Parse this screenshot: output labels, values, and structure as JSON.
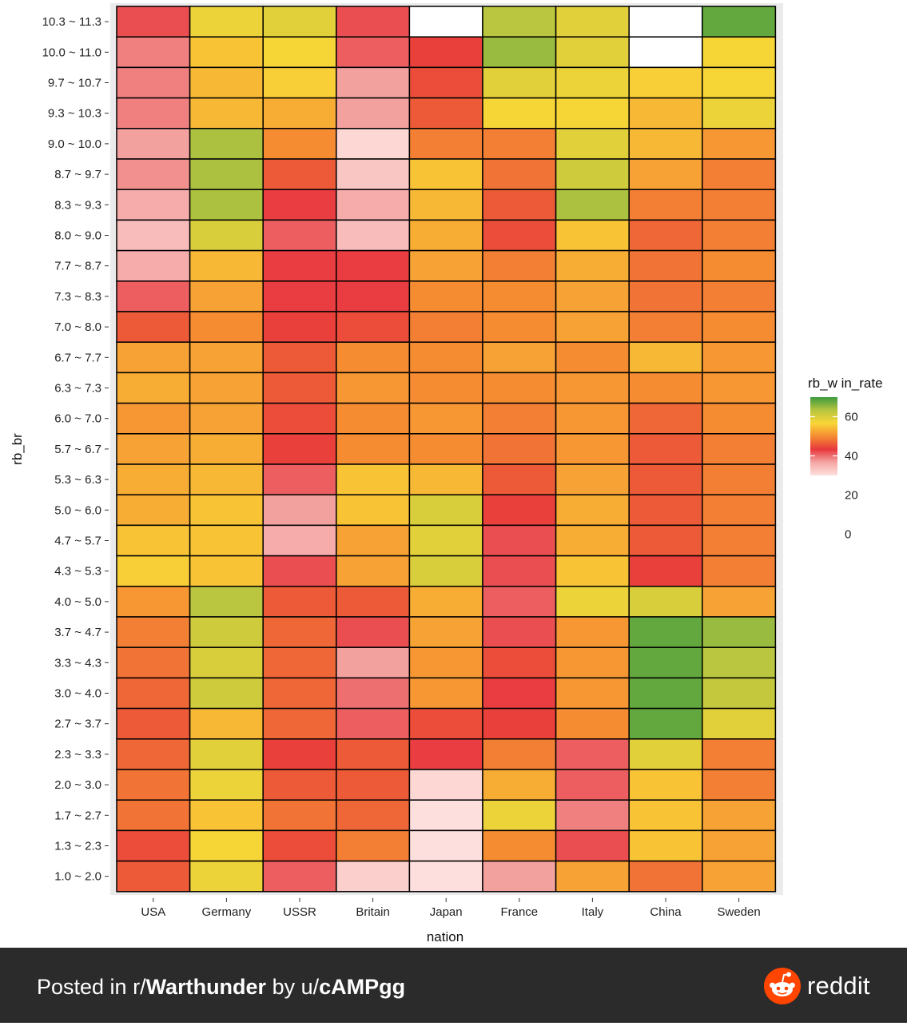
{
  "chart_data": {
    "type": "heatmap",
    "xlabel": "nation",
    "ylabel": "rb_br",
    "x_categories": [
      "USA",
      "Germany",
      "USSR",
      "Britain",
      "Japan",
      "France",
      "Italy",
      "China",
      "Sweden"
    ],
    "y_categories": [
      "10.3 ~ 11.3",
      "10.0 ~ 11.0",
      "9.7 ~ 10.7",
      "9.3 ~ 10.3",
      "9.0 ~ 10.0",
      "8.7 ~ 9.7",
      "8.3 ~ 9.3",
      "8.0 ~ 9.0",
      "7.7 ~ 8.7",
      "7.3 ~ 8.3",
      "7.0 ~ 8.0",
      "6.7 ~ 7.7",
      "6.3 ~ 7.3",
      "6.0 ~ 7.0",
      "5.7 ~ 6.7",
      "5.3 ~ 6.3",
      "5.0 ~ 6.0",
      "4.7 ~ 5.7",
      "4.3 ~ 5.3",
      "4.0 ~ 5.0",
      "3.7 ~ 4.7",
      "3.3 ~ 4.3",
      "3.0 ~ 4.0",
      "2.7 ~ 3.7",
      "2.3 ~ 3.3",
      "2.0 ~ 3.0",
      "1.7 ~ 2.7",
      "1.3 ~ 2.3",
      "1.0 ~ 2.0"
    ],
    "values": [
      [
        42,
        58,
        59,
        42,
        null,
        63,
        59,
        null,
        68
      ],
      [
        39,
        55,
        57,
        41,
        44,
        65,
        59,
        null,
        57
      ],
      [
        39,
        54,
        56,
        37,
        45,
        59,
        58,
        56,
        57
      ],
      [
        39,
        54,
        53,
        37,
        46,
        57,
        57,
        54,
        58
      ],
      [
        37,
        64,
        50,
        31,
        49,
        49,
        59,
        54,
        51
      ],
      [
        38,
        64,
        46,
        33,
        55,
        48,
        61,
        52,
        49
      ],
      [
        36,
        64,
        43,
        36,
        54,
        46,
        64,
        49,
        49
      ],
      [
        34,
        60,
        41,
        34,
        53,
        45,
        55,
        47,
        49
      ],
      [
        36,
        54,
        43,
        43,
        52,
        49,
        53,
        48,
        50
      ],
      [
        41,
        52,
        43,
        43,
        50,
        50,
        52,
        48,
        49
      ],
      [
        46,
        50,
        44,
        45,
        49,
        50,
        52,
        49,
        50
      ],
      [
        52,
        52,
        46,
        50,
        50,
        52,
        50,
        54,
        51
      ],
      [
        53,
        52,
        46,
        51,
        50,
        50,
        51,
        50,
        51
      ],
      [
        51,
        52,
        45,
        50,
        51,
        49,
        51,
        47,
        50
      ],
      [
        52,
        53,
        44,
        50,
        50,
        48,
        51,
        46,
        49
      ],
      [
        53,
        54,
        41,
        55,
        54,
        46,
        52,
        46,
        49
      ],
      [
        53,
        55,
        37,
        55,
        60,
        44,
        53,
        46,
        49
      ],
      [
        55,
        55,
        36,
        52,
        59,
        42,
        53,
        46,
        49
      ],
      [
        56,
        55,
        42,
        52,
        60,
        42,
        55,
        44,
        49
      ],
      [
        51,
        63,
        46,
        46,
        53,
        41,
        58,
        60,
        52
      ],
      [
        49,
        61,
        47,
        42,
        52,
        42,
        51,
        68,
        65
      ],
      [
        48,
        60,
        47,
        37,
        51,
        45,
        51,
        68,
        63
      ],
      [
        47,
        61,
        47,
        40,
        51,
        43,
        51,
        68,
        62
      ],
      [
        46,
        54,
        47,
        41,
        45,
        44,
        50,
        68,
        59
      ],
      [
        47,
        59,
        44,
        46,
        43,
        49,
        41,
        59,
        49
      ],
      [
        48,
        58,
        46,
        46,
        31,
        53,
        41,
        55,
        49
      ],
      [
        48,
        55,
        48,
        47,
        24,
        58,
        39,
        55,
        52
      ],
      [
        45,
        57,
        45,
        49,
        20,
        50,
        42,
        55,
        52
      ],
      [
        46,
        58,
        41,
        32,
        25,
        37,
        52,
        48,
        52
      ]
    ],
    "legend": {
      "title": "rb_w in_rate",
      "ticks": [
        0,
        20,
        40,
        60
      ],
      "colors": [
        "#fde0dd",
        "#f4a6a4",
        "#e8383c",
        "#f58c32",
        "#f9d637",
        "#b7c53f",
        "#3e9b3e"
      ],
      "value_range": [
        30,
        70
      ],
      "placement": "right"
    },
    "missing_color": "#ffffff"
  },
  "footer": {
    "prefix": "Posted in r/",
    "subreddit": "Warthunder",
    "mid": " by u/",
    "user": "cAMPgg",
    "brand": "reddit",
    "background": "#2b2b2b"
  }
}
